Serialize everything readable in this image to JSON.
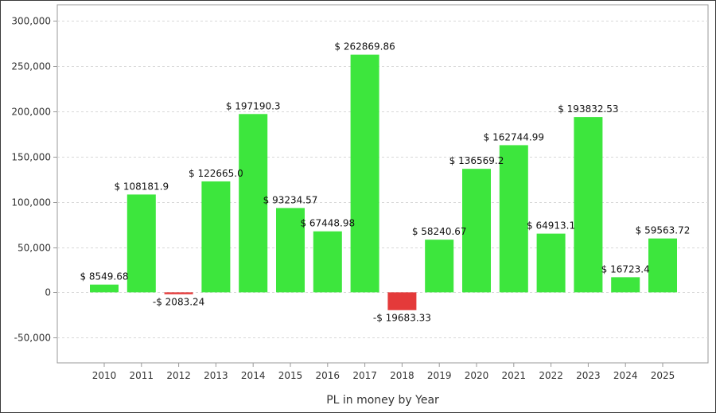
{
  "chart_data": {
    "type": "bar",
    "categories": [
      "2010",
      "2011",
      "2012",
      "2013",
      "2014",
      "2015",
      "2016",
      "2017",
      "2018",
      "2019",
      "2020",
      "2021",
      "2022",
      "2023",
      "2024",
      "2025"
    ],
    "values": [
      8549.68,
      108181.9,
      -2083.24,
      122665.0,
      197190.3,
      93234.57,
      67448.98,
      262869.86,
      -19683.33,
      58240.67,
      136569.2,
      162744.99,
      64913.1,
      193832.53,
      16723.4,
      59563.72
    ],
    "data_labels": [
      "$ 8549.68",
      "$ 108181.9",
      "-$ 2083.24",
      "$ 122665.0",
      "$ 197190.3",
      "$ 93234.57",
      "$ 67448.98",
      "$ 262869.86",
      "-$ 19683.33",
      "$ 58240.67",
      "$ 136569.2",
      "$ 162744.99",
      "$ 64913.1",
      "$ 193832.53",
      "$ 16723.4",
      "$ 59563.72"
    ],
    "y_ticks": [
      -50000,
      0,
      50000,
      100000,
      150000,
      200000,
      250000,
      300000
    ],
    "y_tick_labels": [
      "-50,000",
      "0",
      "50,000",
      "100,000",
      "150,000",
      "200,000",
      "250,000",
      "300,000"
    ],
    "ylim": [
      -78000,
      318000
    ],
    "xlabel": "PL in money by Year",
    "ylabel": "",
    "grid": true,
    "colors": {
      "positive": "#3de63d",
      "negative": "#e43a3a",
      "grid": "#d8d8d8",
      "axis": "#999999"
    }
  }
}
